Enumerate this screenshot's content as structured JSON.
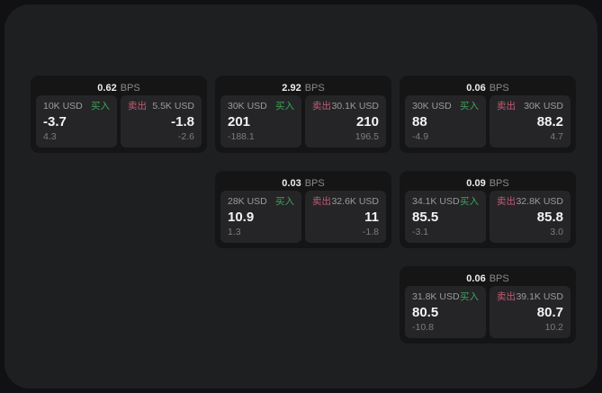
{
  "labels": {
    "bps_unit": "BPS",
    "buy_tag": "买入",
    "sell_tag": "卖出"
  },
  "colors": {
    "window_background": "#111113",
    "panel_background": "#1e1f20",
    "card_background": "#151516",
    "pane_background": "#252527",
    "buy_accent": "#3ea35c",
    "sell_accent": "#c35b74"
  },
  "cards": [
    {
      "bps": "0.62",
      "buy": {
        "amount": "10K USD",
        "price": "-3.7",
        "change": "4.3"
      },
      "sell": {
        "amount": "5.5K USD",
        "price": "-1.8",
        "change": "-2.6"
      }
    },
    {
      "bps": "2.92",
      "buy": {
        "amount": "30K USD",
        "price": "201",
        "change": "-188.1"
      },
      "sell": {
        "amount": "30.1K USD",
        "price": "210",
        "change": "196.5"
      }
    },
    {
      "bps": "0.06",
      "buy": {
        "amount": "30K USD",
        "price": "88",
        "change": "-4.9"
      },
      "sell": {
        "amount": "30K USD",
        "price": "88.2",
        "change": "4.7"
      }
    },
    {
      "bps": "0.03",
      "buy": {
        "amount": "28K USD",
        "price": "10.9",
        "change": "1.3"
      },
      "sell": {
        "amount": "32.6K USD",
        "price": "11",
        "change": "-1.8"
      }
    },
    {
      "bps": "0.09",
      "buy": {
        "amount": "34.1K USD",
        "price": "85.5",
        "change": "-3.1"
      },
      "sell": {
        "amount": "32.8K USD",
        "price": "85.8",
        "change": "3.0"
      }
    },
    {
      "bps": "0.06",
      "buy": {
        "amount": "31.8K USD",
        "price": "80.5",
        "change": "-10.8"
      },
      "sell": {
        "amount": "39.1K USD",
        "price": "80.7",
        "change": "10.2"
      }
    }
  ]
}
